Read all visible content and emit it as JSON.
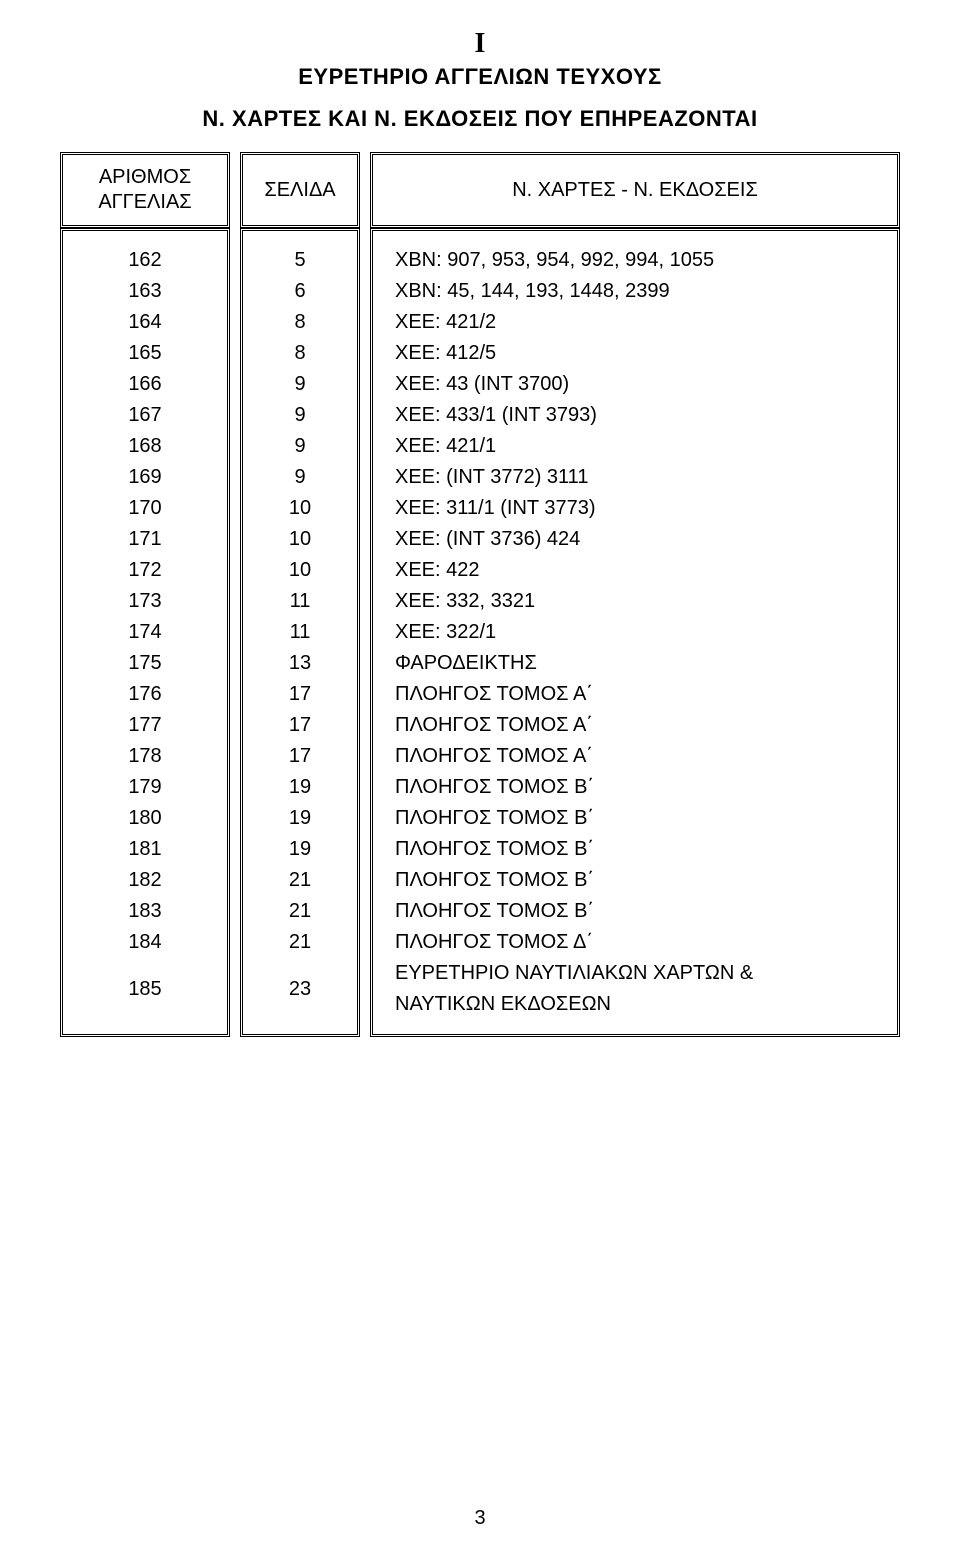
{
  "title_I": "I",
  "title_main": "ΕΥΡΕΤΗΡΙΟ ΑΓΓΕΛΙΩΝ   ΤΕΥΧΟΥΣ",
  "title_sub": "Ν. ΧΑΡΤΕΣ ΚΑΙ Ν. ΕΚΔΟΣΕΙΣ  ΠΟΥ ΕΠΗΡΕΑΖΟΝΤΑΙ",
  "headers": {
    "col1_l1": "ΑΡΙΘΜΟΣ",
    "col1_l2": "ΑΓΓΕΛΙΑΣ",
    "col2": "ΣΕΛΙΔΑ",
    "col3": "Ν. ΧΑΡΤΕΣ - Ν. ΕΚΔΟΣΕΙΣ"
  },
  "rows": [
    {
      "n": "162",
      "p": "5",
      "d": "ΧΒΝ: 907, 953, 954, 992, 994, 1055"
    },
    {
      "n": "163",
      "p": "6",
      "d": "ΧΒΝ: 45, 144, 193, 1448, 2399"
    },
    {
      "n": "164",
      "p": "8",
      "d": "ΧΕΕ: 421/2"
    },
    {
      "n": "165",
      "p": "8",
      "d": "ΧΕΕ: 412/5"
    },
    {
      "n": "166",
      "p": "9",
      "d": "ΧΕΕ: 43 (INT 3700)"
    },
    {
      "n": "167",
      "p": "9",
      "d": "ΧΕΕ: 433/1 (INT 3793)"
    },
    {
      "n": "168",
      "p": "9",
      "d": "ΧΕΕ: 421/1"
    },
    {
      "n": "169",
      "p": "9",
      "d": "ΧΕΕ: (INT 3772) 3111"
    },
    {
      "n": "170",
      "p": "10",
      "d": "ΧΕΕ: 311/1 (INT 3773)"
    },
    {
      "n": "171",
      "p": "10",
      "d": "ΧΕΕ: (INT 3736) 424"
    },
    {
      "n": "172",
      "p": "10",
      "d": "ΧΕΕ: 422"
    },
    {
      "n": "173",
      "p": "11",
      "d": "ΧΕΕ: 332, 3321"
    },
    {
      "n": "174",
      "p": "11",
      "d": "ΧΕΕ: 322/1"
    },
    {
      "n": "175",
      "p": "13",
      "d": "ΦΑΡΟΔΕΙΚΤΗΣ"
    },
    {
      "n": "176",
      "p": "17",
      "d": "ΠΛΟΗΓΟΣ ΤΟΜΟΣ Α΄"
    },
    {
      "n": "177",
      "p": "17",
      "d": "ΠΛΟΗΓΟΣ ΤΟΜΟΣ Α΄"
    },
    {
      "n": "178",
      "p": "17",
      "d": "ΠΛΟΗΓΟΣ ΤΟΜΟΣ Α΄"
    },
    {
      "n": "179",
      "p": "19",
      "d": "ΠΛΟΗΓΟΣ ΤΟΜΟΣ Β΄"
    },
    {
      "n": "180",
      "p": "19",
      "d": "ΠΛΟΗΓΟΣ ΤΟΜΟΣ Β΄"
    },
    {
      "n": "181",
      "p": "19",
      "d": "ΠΛΟΗΓΟΣ ΤΟΜΟΣ Β΄"
    },
    {
      "n": "182",
      "p": "21",
      "d": "ΠΛΟΗΓΟΣ ΤΟΜΟΣ Β΄"
    },
    {
      "n": "183",
      "p": "21",
      "d": "ΠΛΟΗΓΟΣ ΤΟΜΟΣ Β΄"
    },
    {
      "n": "184",
      "p": "21",
      "d": "ΠΛΟΗΓΟΣ ΤΟΜΟΣ Δ΄"
    }
  ],
  "last_row": {
    "n": "185",
    "p": "23",
    "d1": "ΕΥΡΕΤΗΡΙΟ ΝΑΥΤΙΛΙΑΚΩΝ ΧΑΡΤΩΝ &",
    "d2": "ΝΑΥΤΙΚΩΝ ΕΚΔΟΣΕΩΝ"
  },
  "page_number": "3",
  "typography": {
    "heading_fontsize_pt": 16,
    "body_fontsize_pt": 15,
    "font_family": "Arial"
  },
  "colors": {
    "text": "#000000",
    "background": "#ffffff",
    "border": "#000000"
  },
  "layout": {
    "border_style": "double",
    "columns": [
      "ΑΡΙΘΜΟΣ ΑΓΓΕΛΙΑΣ",
      "ΣΕΛΙΔΑ",
      "Ν. ΧΑΡΤΕΣ - Ν. ΕΚΔΟΣΕΙΣ"
    ],
    "column_align": [
      "center",
      "center",
      "left"
    ]
  }
}
